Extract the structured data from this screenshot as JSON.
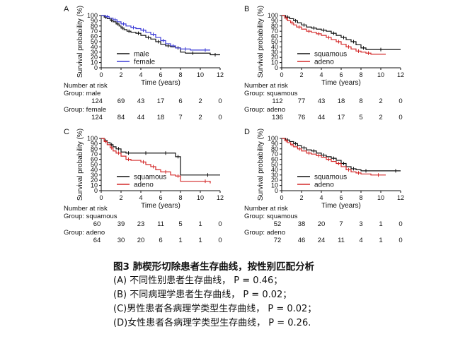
{
  "colors": {
    "black": "#111111",
    "blue": "#3b3bd6",
    "red": "#d42a2a"
  },
  "panels": [
    {
      "letter": "A",
      "ylabel": "Survival probability (%)",
      "xlabel": "Time (years)",
      "legend": [
        "male",
        "female"
      ],
      "risk_title": "Number at risk",
      "risk_groups": [
        {
          "label": "Group: male",
          "counts": [
            "124",
            "69",
            "43",
            "17",
            "6",
            "2",
            "0"
          ]
        },
        {
          "label": "Group: female",
          "counts": [
            "124",
            "84",
            "44",
            "18",
            "7",
            "2",
            "0"
          ]
        }
      ]
    },
    {
      "letter": "B",
      "ylabel": "Survival probability (%)",
      "xlabel": "Time (years)",
      "legend": [
        "squamous",
        "adeno"
      ],
      "risk_title": "Number at risk",
      "risk_groups": [
        {
          "label": "Group: squamous",
          "counts": [
            "112",
            "77",
            "43",
            "18",
            "8",
            "2",
            "0"
          ]
        },
        {
          "label": "Group: adeno",
          "counts": [
            "136",
            "76",
            "44",
            "17",
            "5",
            "2",
            "0"
          ]
        }
      ]
    },
    {
      "letter": "C",
      "ylabel": "Survival probability (%)",
      "xlabel": "Time (years)",
      "legend": [
        "squamous",
        "adeno"
      ],
      "risk_title": "Number at risk",
      "risk_groups": [
        {
          "label": "Group: squamous",
          "counts": [
            "60",
            "39",
            "23",
            "11",
            "5",
            "1",
            "0"
          ]
        },
        {
          "label": "Group: adeno",
          "counts": [
            "64",
            "30",
            "20",
            "6",
            "1",
            "1",
            "0"
          ]
        }
      ]
    },
    {
      "letter": "D",
      "ylabel": "Survival probability (%)",
      "xlabel": "Time (years)",
      "legend": [
        "squamous",
        "adeno"
      ],
      "risk_title": "Number at risk",
      "risk_groups": [
        {
          "label": "Group: squamous",
          "counts": [
            "52",
            "38",
            "20",
            "7",
            "3",
            "1",
            "0"
          ]
        },
        {
          "label": "Group: adeno",
          "counts": [
            "72",
            "46",
            "24",
            "11",
            "4",
            "1",
            "0"
          ]
        }
      ]
    }
  ],
  "chart_data": [
    {
      "type": "line",
      "panel": "A",
      "xlabel": "Time (years)",
      "ylabel": "Survival probability (%)",
      "xlim": [
        0,
        12
      ],
      "ylim": [
        0,
        100
      ],
      "x_ticks": [
        0,
        2,
        4,
        6,
        8,
        10,
        12
      ],
      "y_ticks": [
        0,
        10,
        20,
        30,
        40,
        50,
        60,
        70,
        80,
        90,
        100
      ],
      "legend_position": "bottom-left",
      "series": [
        {
          "name": "male",
          "color": "#111111",
          "points": [
            [
              0,
              100
            ],
            [
              0.3,
              97
            ],
            [
              0.6,
              94
            ],
            [
              0.9,
              91
            ],
            [
              1.2,
              88
            ],
            [
              1.5,
              84
            ],
            [
              1.8,
              80
            ],
            [
              2.0,
              76
            ],
            [
              2.3,
              73
            ],
            [
              2.6,
              70
            ],
            [
              3.0,
              68
            ],
            [
              3.5,
              66
            ],
            [
              4.0,
              62
            ],
            [
              4.5,
              58
            ],
            [
              5.0,
              55
            ],
            [
              5.5,
              50
            ],
            [
              6.0,
              45
            ],
            [
              6.5,
              42
            ],
            [
              7.0,
              40
            ],
            [
              7.5,
              38
            ],
            [
              8.0,
              30
            ],
            [
              8.5,
              28
            ],
            [
              10.0,
              28
            ],
            [
              11.0,
              25
            ],
            [
              12.0,
              25
            ]
          ]
        },
        {
          "name": "female",
          "color": "#3b3bd6",
          "points": [
            [
              0,
              100
            ],
            [
              0.4,
              98
            ],
            [
              0.8,
              95
            ],
            [
              1.2,
              92
            ],
            [
              1.6,
              88
            ],
            [
              2.0,
              84
            ],
            [
              2.5,
              80
            ],
            [
              3.0,
              77
            ],
            [
              3.5,
              75
            ],
            [
              4.0,
              72
            ],
            [
              4.5,
              68
            ],
            [
              5.0,
              64
            ],
            [
              5.5,
              58
            ],
            [
              6.0,
              52
            ],
            [
              6.5,
              46
            ],
            [
              7.0,
              42
            ],
            [
              7.5,
              38
            ],
            [
              8.0,
              36
            ],
            [
              9.0,
              34
            ],
            [
              10.0,
              34
            ],
            [
              11.0,
              34
            ]
          ]
        }
      ]
    },
    {
      "type": "line",
      "panel": "B",
      "xlabel": "Time (years)",
      "ylabel": "Survival probability (%)",
      "xlim": [
        0,
        12
      ],
      "ylim": [
        0,
        100
      ],
      "x_ticks": [
        0,
        2,
        4,
        6,
        8,
        10,
        12
      ],
      "y_ticks": [
        0,
        10,
        20,
        30,
        40,
        50,
        60,
        70,
        80,
        90,
        100
      ],
      "legend_position": "bottom-left",
      "series": [
        {
          "name": "squamous",
          "color": "#111111",
          "points": [
            [
              0,
              100
            ],
            [
              0.4,
              97
            ],
            [
              0.8,
              94
            ],
            [
              1.2,
              90
            ],
            [
              1.6,
              86
            ],
            [
              2.0,
              82
            ],
            [
              2.5,
              78
            ],
            [
              3.0,
              76
            ],
            [
              3.5,
              74
            ],
            [
              4.0,
              72
            ],
            [
              4.5,
              70
            ],
            [
              5.0,
              66
            ],
            [
              5.5,
              62
            ],
            [
              6.0,
              58
            ],
            [
              6.5,
              54
            ],
            [
              7.0,
              50
            ],
            [
              7.5,
              44
            ],
            [
              8.0,
              38
            ],
            [
              8.5,
              35
            ],
            [
              9.0,
              35
            ],
            [
              11.0,
              35
            ],
            [
              12.0,
              35
            ]
          ]
        },
        {
          "name": "adeno",
          "color": "#d42a2a",
          "points": [
            [
              0,
              100
            ],
            [
              0.3,
              95
            ],
            [
              0.6,
              90
            ],
            [
              0.9,
              86
            ],
            [
              1.2,
              82
            ],
            [
              1.5,
              78
            ],
            [
              2.0,
              74
            ],
            [
              2.5,
              70
            ],
            [
              3.0,
              68
            ],
            [
              3.5,
              65
            ],
            [
              4.0,
              62
            ],
            [
              4.5,
              58
            ],
            [
              5.0,
              54
            ],
            [
              5.5,
              50
            ],
            [
              6.0,
              45
            ],
            [
              6.5,
              40
            ],
            [
              7.0,
              36
            ],
            [
              7.5,
              32
            ],
            [
              8.0,
              30
            ],
            [
              8.5,
              28
            ],
            [
              9.0,
              26
            ],
            [
              10.5,
              26
            ]
          ]
        }
      ]
    },
    {
      "type": "line",
      "panel": "C",
      "xlabel": "Time (years)",
      "ylabel": "Survival probability (%)",
      "xlim": [
        0,
        12
      ],
      "ylim": [
        0,
        100
      ],
      "x_ticks": [
        0,
        2,
        4,
        6,
        8,
        10,
        12
      ],
      "y_ticks": [
        0,
        10,
        20,
        30,
        40,
        50,
        60,
        70,
        80,
        90,
        100
      ],
      "legend_position": "bottom-left",
      "series": [
        {
          "name": "squamous",
          "color": "#111111",
          "points": [
            [
              0,
              100
            ],
            [
              0.3,
              96
            ],
            [
              0.6,
              92
            ],
            [
              0.9,
              88
            ],
            [
              1.2,
              84
            ],
            [
              1.5,
              80
            ],
            [
              2.0,
              74
            ],
            [
              2.5,
              72
            ],
            [
              3.0,
              72
            ],
            [
              4.0,
              72
            ],
            [
              5.0,
              72
            ],
            [
              6.0,
              72
            ],
            [
              7.0,
              72
            ],
            [
              7.5,
              65
            ],
            [
              8.0,
              30
            ],
            [
              10.0,
              30
            ],
            [
              11.5,
              30
            ],
            [
              12.0,
              30
            ]
          ]
        },
        {
          "name": "adeno",
          "color": "#d42a2a",
          "points": [
            [
              0,
              100
            ],
            [
              0.3,
              94
            ],
            [
              0.6,
              88
            ],
            [
              0.9,
              82
            ],
            [
              1.2,
              76
            ],
            [
              1.5,
              72
            ],
            [
              2.0,
              66
            ],
            [
              2.5,
              60
            ],
            [
              3.0,
              58
            ],
            [
              4.0,
              55
            ],
            [
              4.5,
              50
            ],
            [
              5.0,
              46
            ],
            [
              5.5,
              40
            ],
            [
              6.0,
              36
            ],
            [
              7.0,
              30
            ],
            [
              7.5,
              28
            ],
            [
              8.0,
              18
            ],
            [
              10.0,
              18
            ],
            [
              11.0,
              14
            ]
          ]
        }
      ]
    },
    {
      "type": "line",
      "panel": "D",
      "xlabel": "Time (years)",
      "ylabel": "Survival probability (%)",
      "xlim": [
        0,
        12
      ],
      "ylim": [
        0,
        100
      ],
      "x_ticks": [
        0,
        2,
        4,
        6,
        8,
        10,
        12
      ],
      "y_ticks": [
        0,
        10,
        20,
        30,
        40,
        50,
        60,
        70,
        80,
        90,
        100
      ],
      "legend_position": "bottom-left",
      "series": [
        {
          "name": "squamous",
          "color": "#111111",
          "points": [
            [
              0,
              100
            ],
            [
              0.4,
              97
            ],
            [
              0.8,
              94
            ],
            [
              1.2,
              90
            ],
            [
              1.6,
              86
            ],
            [
              2.0,
              82
            ],
            [
              2.5,
              78
            ],
            [
              3.0,
              76
            ],
            [
              3.5,
              72
            ],
            [
              4.0,
              68
            ],
            [
              4.5,
              65
            ],
            [
              5.0,
              62
            ],
            [
              5.5,
              58
            ],
            [
              6.0,
              52
            ],
            [
              6.5,
              46
            ],
            [
              7.0,
              42
            ],
            [
              7.5,
              40
            ],
            [
              8.0,
              38
            ],
            [
              9.0,
              38
            ],
            [
              11.0,
              38
            ],
            [
              12.0,
              38
            ]
          ]
        },
        {
          "name": "adeno",
          "color": "#d42a2a",
          "points": [
            [
              0,
              100
            ],
            [
              0.3,
              96
            ],
            [
              0.6,
              92
            ],
            [
              0.9,
              88
            ],
            [
              1.2,
              84
            ],
            [
              1.6,
              80
            ],
            [
              2.0,
              76
            ],
            [
              2.5,
              72
            ],
            [
              3.0,
              70
            ],
            [
              3.5,
              67
            ],
            [
              4.0,
              64
            ],
            [
              4.5,
              60
            ],
            [
              5.0,
              56
            ],
            [
              5.5,
              52
            ],
            [
              6.0,
              46
            ],
            [
              6.5,
              40
            ],
            [
              7.0,
              36
            ],
            [
              7.5,
              34
            ],
            [
              8.0,
              32
            ],
            [
              9.0,
              30
            ],
            [
              10.5,
              30
            ]
          ]
        }
      ]
    }
  ],
  "caption": {
    "title": "图3 肺楔形切除患者生存曲线，按性别匹配分析",
    "lines": [
      "(A) 不同性别患者生存曲线， P = 0.46；",
      "(B) 不同病理学患者生存曲线， P = 0.02；",
      "(C)男性患者各病理学类型生存曲线， P = 0.02；",
      "(D)女性患者各病理学类型生存曲线， P = 0.26."
    ]
  }
}
